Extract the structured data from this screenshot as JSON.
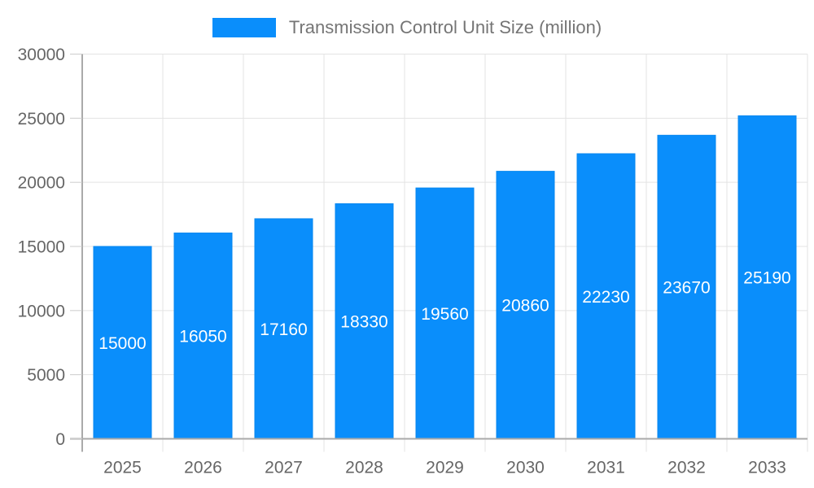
{
  "legend": {
    "label": "Transmission Control Unit Size (million)"
  },
  "chart_data": {
    "type": "bar",
    "title": "Transmission Control Unit Size (million)",
    "categories": [
      "2025",
      "2026",
      "2027",
      "2028",
      "2029",
      "2030",
      "2031",
      "2032",
      "2033"
    ],
    "values": [
      15000,
      16050,
      17160,
      18330,
      19560,
      20860,
      22230,
      23670,
      25190
    ],
    "value_labels": [
      "15000",
      "16050",
      "17160",
      "18330",
      "19560",
      "20860",
      "22230",
      "23670",
      "25190"
    ],
    "xlabel": "",
    "ylabel": "",
    "ylim": [
      0,
      30000
    ],
    "ytick_step": 5000,
    "ytick_labels": [
      "0",
      "5000",
      "10000",
      "15000",
      "20000",
      "25000",
      "30000"
    ],
    "grid": "on",
    "legend_position": "top-center",
    "value_label_position": "inside-middle",
    "colors": {
      "bar": "#0A8EFB",
      "bar_edge": "#0787ef",
      "grid": "#e3e3e3",
      "axis": "#aaaaaa",
      "tick": "#cccccc",
      "tick_label": "#666666",
      "legend_text": "#757575",
      "value_label": "#ffffff",
      "background": "#ffffff"
    }
  }
}
